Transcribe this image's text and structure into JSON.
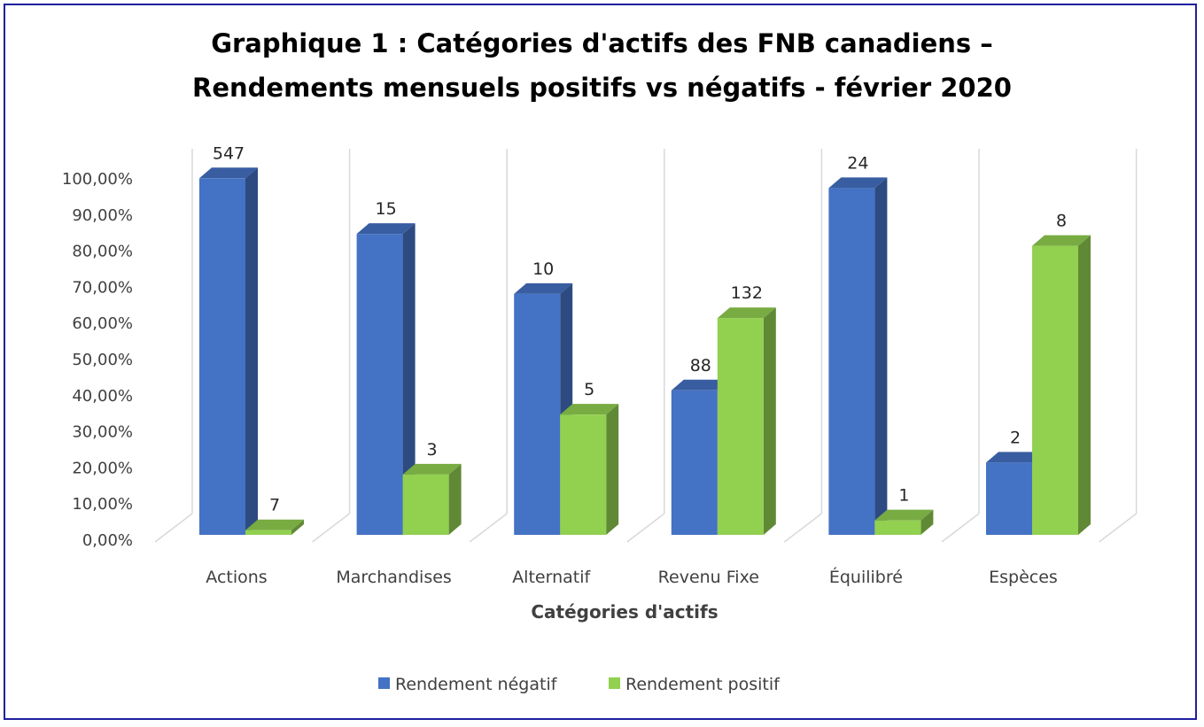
{
  "chart_data": {
    "type": "bar",
    "title_line1": "Graphique 1 : Catégories d'actifs des FNB canadiens –",
    "title_line2": "Rendements mensuels positifs vs négatifs - février 2020",
    "xlabel": "Catégories d'actifs",
    "ylabel": "",
    "ylim": [
      0,
      100
    ],
    "y_ticks": [
      "0,00%",
      "10,00%",
      "20,00%",
      "30,00%",
      "40,00%",
      "50,00%",
      "60,00%",
      "70,00%",
      "80,00%",
      "90,00%",
      "100,00%"
    ],
    "categories": [
      "Actions",
      "Marchandises",
      "Alternatif",
      "Revenu Fixe",
      "Équilibré",
      "Espèces"
    ],
    "series": [
      {
        "name": "Rendement négatif",
        "color": "#4472C4",
        "values": [
          98.7,
          83.3,
          66.7,
          40.0,
          96.0,
          20.0
        ],
        "labels": [
          "547",
          "15",
          "10",
          "88",
          "24",
          "2"
        ]
      },
      {
        "name": "Rendement positif",
        "color": "#92D050",
        "values": [
          1.3,
          16.7,
          33.3,
          60.0,
          4.0,
          80.0
        ],
        "labels": [
          "7",
          "3",
          "5",
          "132",
          "1",
          "8"
        ]
      }
    ],
    "grid": true,
    "legend_position": "bottom"
  }
}
